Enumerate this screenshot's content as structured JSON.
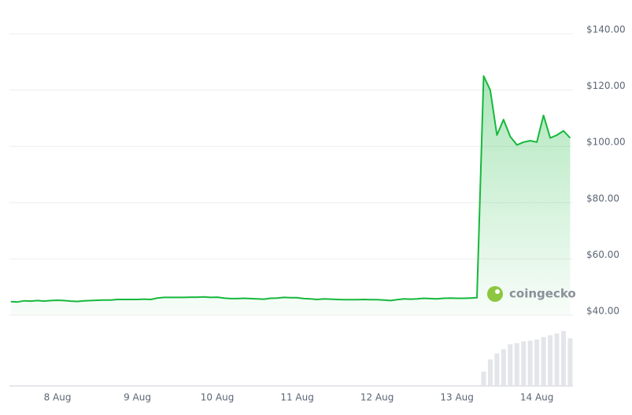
{
  "chart_data": {
    "type": "line",
    "categories": [
      null,
      null,
      null,
      null,
      null,
      null,
      null,
      "8 Aug",
      null,
      null,
      null,
      null,
      null,
      null,
      null,
      null,
      null,
      null,
      null,
      "9 Aug",
      null,
      null,
      null,
      null,
      null,
      null,
      null,
      null,
      null,
      null,
      null,
      "10 Aug",
      null,
      null,
      null,
      null,
      null,
      null,
      null,
      null,
      null,
      null,
      null,
      "11 Aug",
      null,
      null,
      null,
      null,
      null,
      null,
      null,
      null,
      null,
      null,
      null,
      "12 Aug",
      null,
      null,
      null,
      null,
      null,
      null,
      null,
      null,
      null,
      null,
      null,
      "13 Aug",
      null,
      null,
      null,
      null,
      null,
      null,
      null,
      null,
      null,
      null,
      null,
      "14 Aug",
      null,
      null,
      null,
      null,
      null
    ],
    "series": [
      {
        "color": "#16b83c",
        "values": [
          44.8,
          44.7,
          45.1,
          45.0,
          45.2,
          45.0,
          45.2,
          45.3,
          45.2,
          45.0,
          44.9,
          45.1,
          45.2,
          45.3,
          45.4,
          45.4,
          45.6,
          45.6,
          45.6,
          45.6,
          45.7,
          45.6,
          46.1,
          46.3,
          46.3,
          46.3,
          46.3,
          46.4,
          46.4,
          46.5,
          46.3,
          46.4,
          46.1,
          45.9,
          45.9,
          46.0,
          45.9,
          45.8,
          45.7,
          46.0,
          46.1,
          46.3,
          46.2,
          46.2,
          45.9,
          45.8,
          45.6,
          45.8,
          45.7,
          45.6,
          45.5,
          45.5,
          45.5,
          45.6,
          45.5,
          45.5,
          45.4,
          45.2,
          45.5,
          45.8,
          45.7,
          45.8,
          46.0,
          45.9,
          45.8,
          46.0,
          46.1,
          46.0,
          46.0,
          46.1,
          46.2,
          125,
          120,
          104,
          109.5,
          103.5,
          100.5,
          101.5,
          102,
          101.5,
          111,
          103,
          104,
          105.5,
          103
        ]
      }
    ],
    "volume": [
      0,
      0,
      0,
      0,
      0,
      0,
      0,
      0,
      0,
      0,
      0,
      0,
      0,
      0,
      0,
      0,
      0,
      0,
      0,
      0,
      0,
      0,
      0,
      0,
      0,
      0,
      0,
      0,
      0,
      0,
      0,
      0,
      0,
      0,
      0,
      0,
      0,
      0,
      0,
      0,
      0,
      0,
      0,
      0,
      0,
      0,
      0,
      0,
      0,
      0,
      0,
      0,
      0,
      0,
      0,
      0,
      0,
      0,
      0,
      0,
      0,
      0,
      0,
      0,
      0,
      0,
      0,
      0,
      0,
      0,
      0,
      25,
      45,
      55,
      62,
      70,
      72,
      75,
      76,
      78,
      82,
      85,
      88,
      92,
      80
    ],
    "volume_lim": [
      0,
      100
    ],
    "ylim": [
      40,
      140
    ],
    "yticks": [
      {
        "value": 40,
        "label": "$40.00"
      },
      {
        "value": 60,
        "label": "$60.00"
      },
      {
        "value": 80,
        "label": "$80.00"
      },
      {
        "value": 100,
        "label": "$100.00"
      },
      {
        "value": 120,
        "label": "$120.00"
      },
      {
        "value": 140,
        "label": "$140.00"
      }
    ],
    "grid": true,
    "watermark": "coingecko"
  }
}
